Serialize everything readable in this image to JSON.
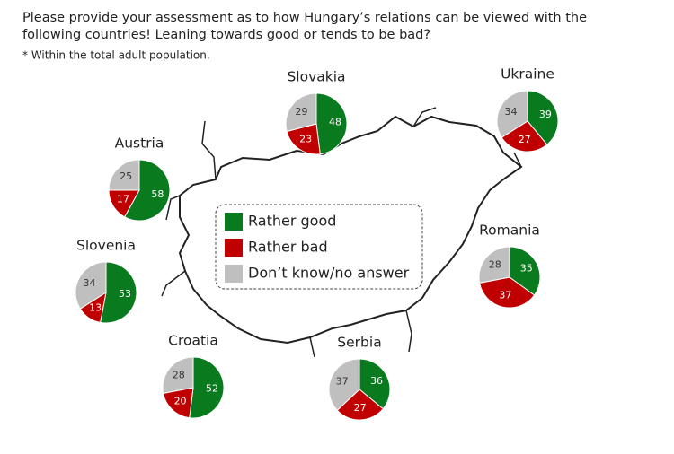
{
  "title_lines": [
    "Please provide your assessment as to how Hungary’s relations can be viewed with the",
    "following countries! Leaning towards good or tends to be bad?"
  ],
  "note": "* Within the total adult population.",
  "legend": {
    "labels": [
      "Rather good",
      "Rather bad",
      "Don’t know/no answer"
    ],
    "colors": [
      "#0a7a1e",
      "#c00000",
      "#bfbfbf"
    ]
  },
  "chart_data": [
    {
      "type": "pie",
      "title": "Slovakia",
      "values": [
        48,
        23,
        29
      ]
    },
    {
      "type": "pie",
      "title": "Ukraine",
      "values": [
        39,
        27,
        34
      ]
    },
    {
      "type": "pie",
      "title": "Austria",
      "values": [
        58,
        17,
        25
      ]
    },
    {
      "type": "pie",
      "title": "Slovenia",
      "values": [
        53,
        13,
        34
      ]
    },
    {
      "type": "pie",
      "title": "Romania",
      "values": [
        35,
        37,
        28
      ]
    },
    {
      "type": "pie",
      "title": "Croatia",
      "values": [
        52,
        20,
        28
      ]
    },
    {
      "type": "pie",
      "title": "Serbia",
      "values": [
        36,
        27,
        37
      ]
    }
  ]
}
